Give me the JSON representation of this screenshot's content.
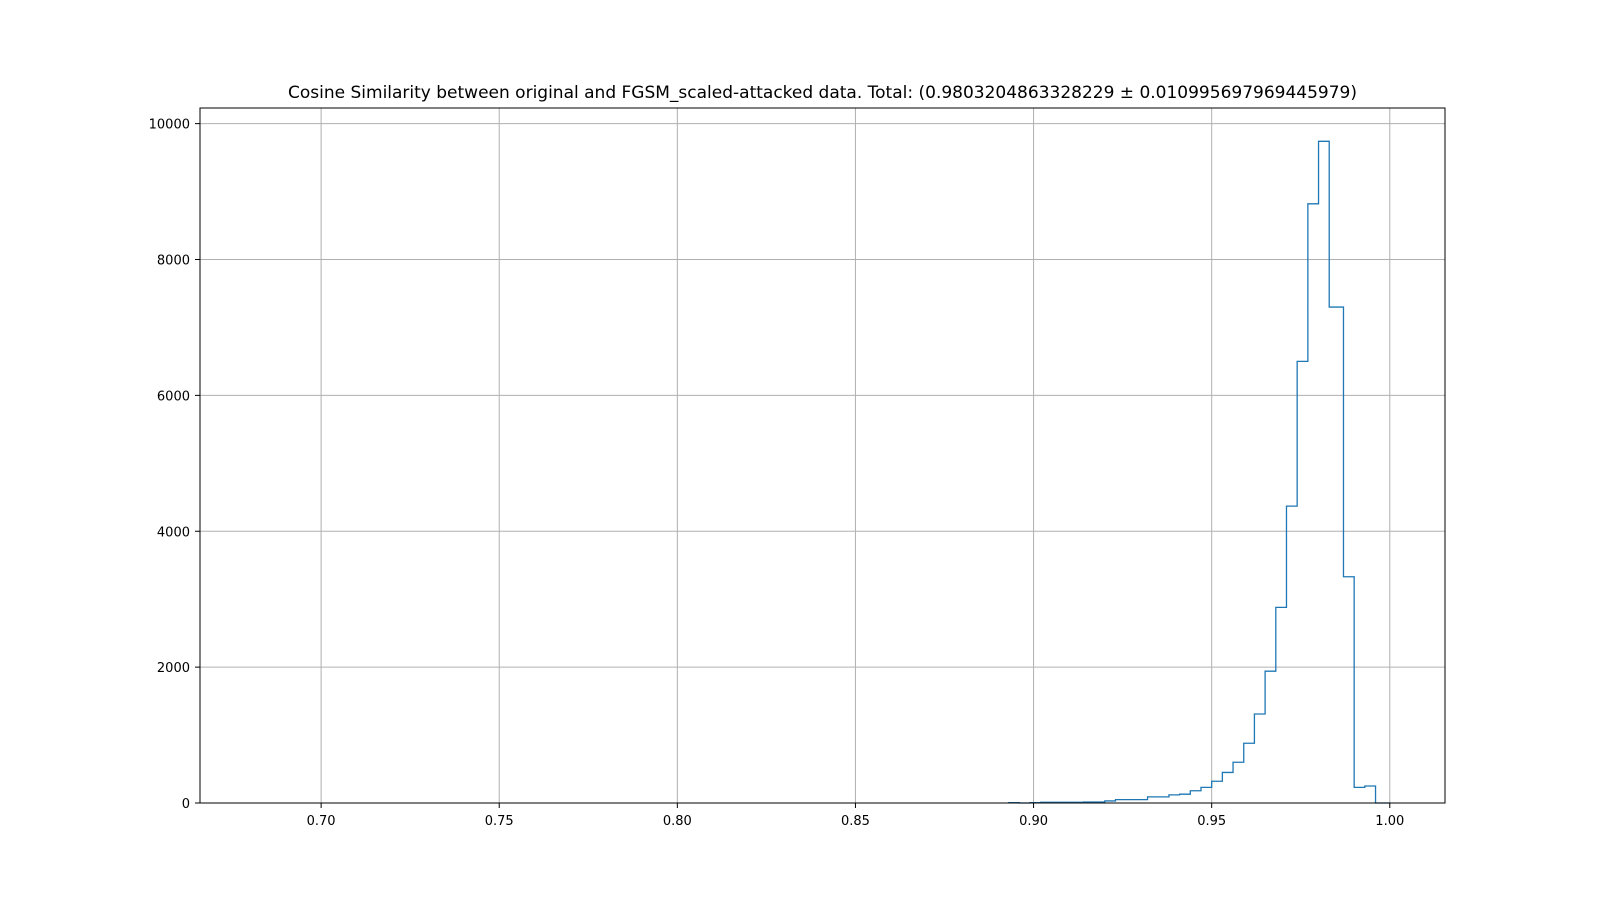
{
  "chart_data": {
    "type": "histogram",
    "title": "Cosine Similarity between original and FGSM_scaled-attacked data. Total: (0.9803204863328229 ± 0.010995697969445979)",
    "xlabel": "",
    "ylabel": "",
    "xlim": [
      0.666,
      1.0155
    ],
    "ylim": [
      0,
      10230
    ],
    "x_ticks": [
      {
        "value": 0.7,
        "label": "0.70"
      },
      {
        "value": 0.75,
        "label": "0.75"
      },
      {
        "value": 0.8,
        "label": "0.80"
      },
      {
        "value": 0.85,
        "label": "0.85"
      },
      {
        "value": 0.9,
        "label": "0.90"
      },
      {
        "value": 0.95,
        "label": "0.95"
      },
      {
        "value": 1.0,
        "label": "1.00"
      }
    ],
    "y_ticks": [
      {
        "value": 0,
        "label": "0"
      },
      {
        "value": 2000,
        "label": "2000"
      },
      {
        "value": 4000,
        "label": "4000"
      },
      {
        "value": 6000,
        "label": "6000"
      },
      {
        "value": 8000,
        "label": "8000"
      },
      {
        "value": 10000,
        "label": "10000"
      }
    ],
    "grid": true,
    "color": "#1f77b4",
    "bin_edges": [
      0.893,
      0.896,
      0.899,
      0.902,
      0.905,
      0.908,
      0.911,
      0.914,
      0.917,
      0.92,
      0.923,
      0.926,
      0.929,
      0.932,
      0.935,
      0.938,
      0.941,
      0.944,
      0.947,
      0.95,
      0.953,
      0.956,
      0.959,
      0.962,
      0.965,
      0.968,
      0.971,
      0.974,
      0.977,
      0.98,
      0.983,
      0.987,
      0.99,
      0.993,
      0.996,
      1.0
    ],
    "counts": [
      5,
      0,
      5,
      10,
      10,
      10,
      10,
      15,
      15,
      30,
      50,
      50,
      50,
      90,
      90,
      120,
      130,
      180,
      230,
      320,
      450,
      600,
      880,
      1310,
      1940,
      2880,
      4370,
      6500,
      8820,
      9740,
      7300,
      3330,
      230,
      250,
      0
    ]
  }
}
